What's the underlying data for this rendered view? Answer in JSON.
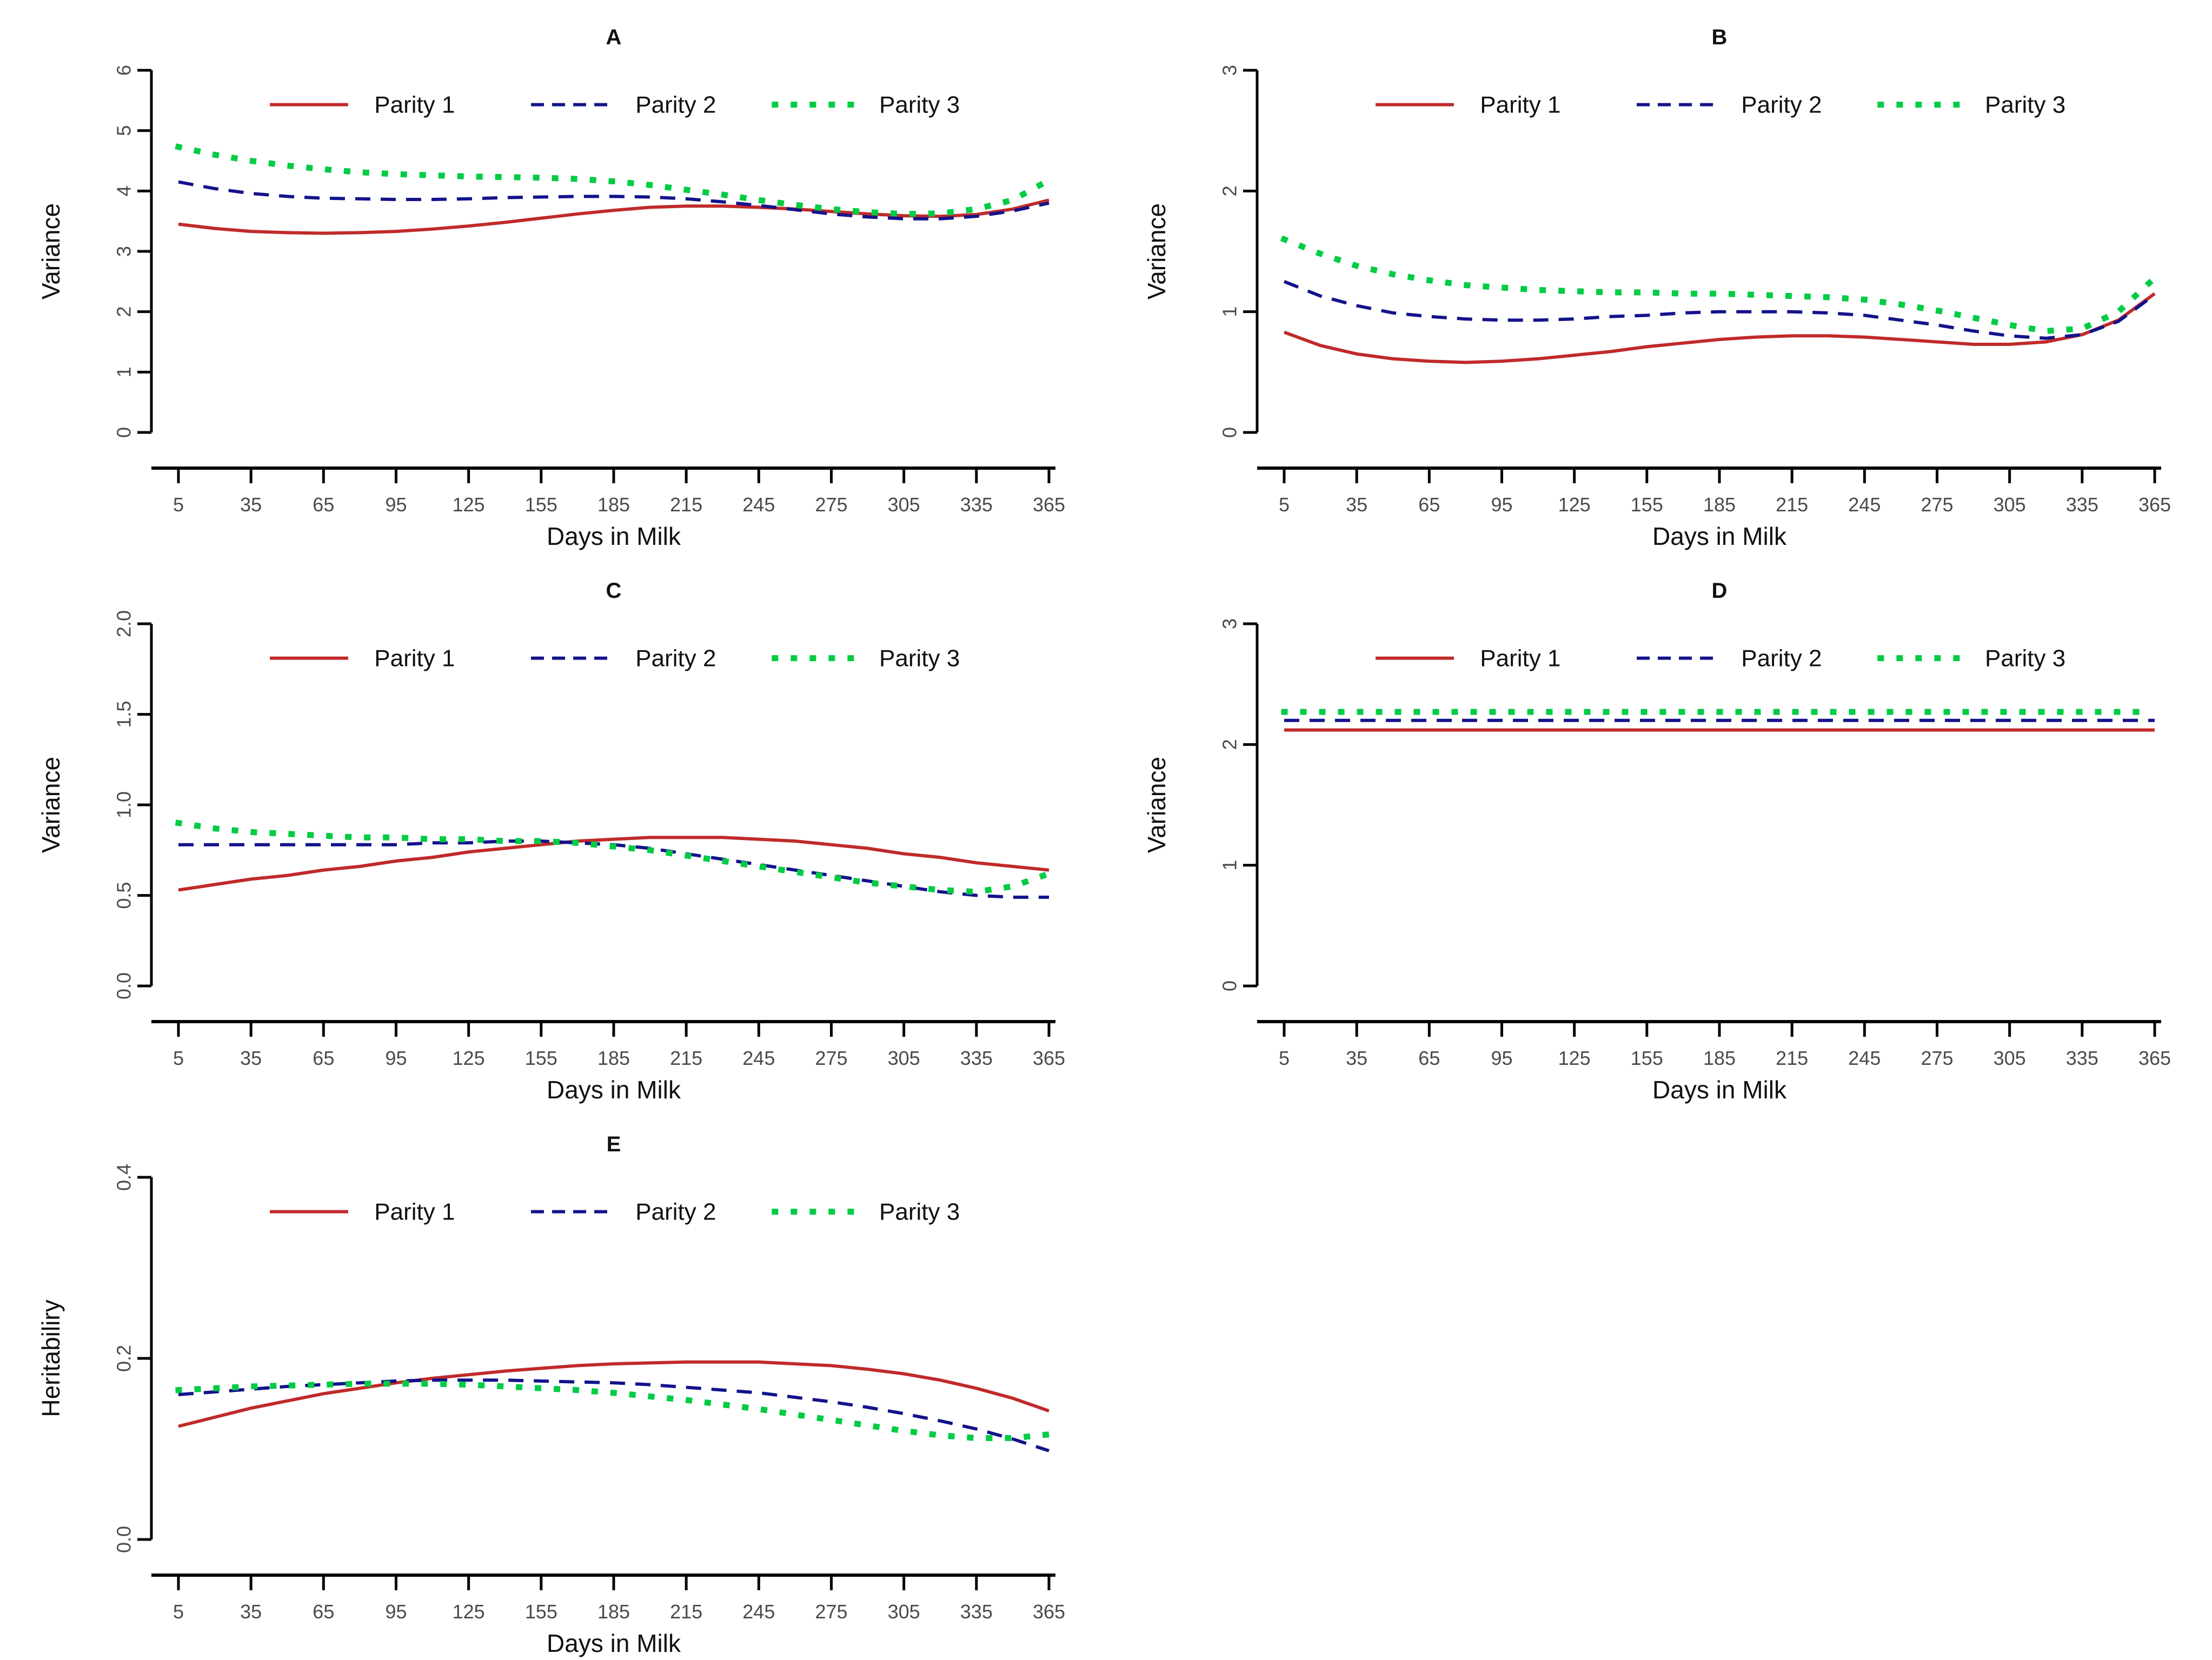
{
  "figure": {
    "background": "#ffffff",
    "xlabel": "Days in Milk",
    "x_ticks": [
      5,
      35,
      65,
      95,
      125,
      155,
      185,
      215,
      245,
      275,
      305,
      335,
      365
    ],
    "x_min": 5,
    "x_max": 365
  },
  "colors": {
    "parity1": "#c02a2a",
    "parity2": "#13138c",
    "parity3": "#00cc44",
    "axis": "#000000",
    "tick_text": "#4a4a4a",
    "label_text": "#111111"
  },
  "legend": {
    "items": [
      {
        "label": "Parity 1",
        "series": "parity1",
        "style": "solid"
      },
      {
        "label": "Parity 2",
        "series": "parity2",
        "style": "dashed"
      },
      {
        "label": "Parity 3",
        "series": "parity3",
        "style": "dotted"
      }
    ]
  },
  "chart_data": [
    {
      "type": "line",
      "title": "A",
      "xlabel": "Days in Milk",
      "ylabel": "Variance",
      "ylim": [
        0,
        6
      ],
      "ytick_labels": [
        "0",
        "1",
        "2",
        "3",
        "4",
        "5",
        "6"
      ],
      "yticks": [
        0,
        1,
        2,
        3,
        4,
        5,
        6
      ],
      "x": [
        5,
        20,
        35,
        50,
        65,
        80,
        95,
        110,
        125,
        140,
        155,
        170,
        185,
        200,
        215,
        230,
        245,
        260,
        275,
        290,
        305,
        320,
        335,
        350,
        365
      ],
      "series": [
        {
          "name": "Parity 1",
          "color_key": "parity1",
          "dash": "solid",
          "values": [
            3.45,
            3.38,
            3.33,
            3.31,
            3.3,
            3.31,
            3.33,
            3.37,
            3.42,
            3.48,
            3.55,
            3.62,
            3.68,
            3.73,
            3.75,
            3.75,
            3.73,
            3.7,
            3.66,
            3.62,
            3.59,
            3.58,
            3.61,
            3.7,
            3.85
          ]
        },
        {
          "name": "Parity 2",
          "color_key": "parity2",
          "dash": "dashed",
          "values": [
            4.15,
            4.04,
            3.96,
            3.91,
            3.88,
            3.87,
            3.86,
            3.86,
            3.87,
            3.89,
            3.9,
            3.91,
            3.91,
            3.9,
            3.87,
            3.82,
            3.76,
            3.69,
            3.62,
            3.57,
            3.54,
            3.54,
            3.58,
            3.67,
            3.8
          ]
        },
        {
          "name": "Parity 3",
          "color_key": "parity3",
          "dash": "dotted",
          "values": [
            4.73,
            4.6,
            4.5,
            4.42,
            4.36,
            4.31,
            4.28,
            4.26,
            4.24,
            4.23,
            4.22,
            4.2,
            4.16,
            4.1,
            4.02,
            3.94,
            3.85,
            3.77,
            3.7,
            3.65,
            3.62,
            3.63,
            3.7,
            3.85,
            4.18
          ]
        }
      ]
    },
    {
      "type": "line",
      "title": "B",
      "xlabel": "Days in Milk",
      "ylabel": "Variance",
      "ylim": [
        0,
        3
      ],
      "ytick_labels": [
        "0",
        "1",
        "2",
        "3"
      ],
      "yticks": [
        0,
        1,
        2,
        3
      ],
      "x": [
        5,
        20,
        35,
        50,
        65,
        80,
        95,
        110,
        125,
        140,
        155,
        170,
        185,
        200,
        215,
        230,
        245,
        260,
        275,
        290,
        305,
        320,
        335,
        350,
        365
      ],
      "series": [
        {
          "name": "Parity 1",
          "color_key": "parity1",
          "dash": "solid",
          "values": [
            0.83,
            0.72,
            0.65,
            0.61,
            0.59,
            0.58,
            0.59,
            0.61,
            0.64,
            0.67,
            0.71,
            0.74,
            0.77,
            0.79,
            0.8,
            0.8,
            0.79,
            0.77,
            0.75,
            0.73,
            0.73,
            0.75,
            0.81,
            0.93,
            1.15
          ]
        },
        {
          "name": "Parity 2",
          "color_key": "parity2",
          "dash": "dashed",
          "values": [
            1.25,
            1.13,
            1.05,
            0.99,
            0.96,
            0.94,
            0.93,
            0.93,
            0.94,
            0.96,
            0.97,
            0.99,
            1.0,
            1.0,
            1.0,
            0.99,
            0.97,
            0.93,
            0.89,
            0.84,
            0.8,
            0.78,
            0.81,
            0.92,
            1.14
          ]
        },
        {
          "name": "Parity 3",
          "color_key": "parity3",
          "dash": "dotted",
          "values": [
            1.6,
            1.48,
            1.38,
            1.31,
            1.26,
            1.22,
            1.2,
            1.18,
            1.17,
            1.16,
            1.16,
            1.15,
            1.15,
            1.14,
            1.13,
            1.12,
            1.1,
            1.06,
            1.01,
            0.95,
            0.89,
            0.84,
            0.86,
            1.0,
            1.28
          ]
        }
      ]
    },
    {
      "type": "line",
      "title": "C",
      "xlabel": "Days in Milk",
      "ylabel": "Variance",
      "ylim": [
        0,
        2
      ],
      "ytick_labels": [
        "0.0",
        "0.5",
        "1.0",
        "1.5",
        "2.0"
      ],
      "yticks": [
        0,
        0.5,
        1,
        1.5,
        2
      ],
      "x": [
        5,
        20,
        35,
        50,
        65,
        80,
        95,
        110,
        125,
        140,
        155,
        170,
        185,
        200,
        215,
        230,
        245,
        260,
        275,
        290,
        305,
        320,
        335,
        350,
        365
      ],
      "series": [
        {
          "name": "Parity 1",
          "color_key": "parity1",
          "dash": "solid",
          "values": [
            0.53,
            0.56,
            0.59,
            0.61,
            0.64,
            0.66,
            0.69,
            0.71,
            0.74,
            0.76,
            0.78,
            0.8,
            0.81,
            0.82,
            0.82,
            0.82,
            0.81,
            0.8,
            0.78,
            0.76,
            0.73,
            0.71,
            0.68,
            0.66,
            0.64
          ]
        },
        {
          "name": "Parity 2",
          "color_key": "parity2",
          "dash": "dashed",
          "values": [
            0.78,
            0.78,
            0.78,
            0.78,
            0.78,
            0.78,
            0.78,
            0.79,
            0.79,
            0.8,
            0.8,
            0.79,
            0.78,
            0.76,
            0.73,
            0.7,
            0.67,
            0.64,
            0.61,
            0.58,
            0.55,
            0.52,
            0.5,
            0.49,
            0.49
          ]
        },
        {
          "name": "Parity 3",
          "color_key": "parity3",
          "dash": "dotted",
          "values": [
            0.9,
            0.87,
            0.85,
            0.84,
            0.83,
            0.82,
            0.82,
            0.81,
            0.81,
            0.8,
            0.8,
            0.79,
            0.77,
            0.75,
            0.72,
            0.69,
            0.66,
            0.63,
            0.6,
            0.57,
            0.55,
            0.53,
            0.52,
            0.55,
            0.62
          ]
        }
      ]
    },
    {
      "type": "line",
      "title": "D",
      "xlabel": "Days in Milk",
      "ylabel": "Variance",
      "ylim": [
        0,
        3
      ],
      "ytick_labels": [
        "0",
        "1",
        "2",
        "3"
      ],
      "yticks": [
        0,
        1,
        2,
        3
      ],
      "x": [
        5,
        20,
        35,
        50,
        65,
        80,
        95,
        110,
        125,
        140,
        155,
        170,
        185,
        200,
        215,
        230,
        245,
        260,
        275,
        290,
        305,
        320,
        335,
        350,
        365
      ],
      "series": [
        {
          "name": "Parity 1",
          "color_key": "parity1",
          "dash": "solid",
          "values": [
            2.12,
            2.12,
            2.12,
            2.12,
            2.12,
            2.12,
            2.12,
            2.12,
            2.12,
            2.12,
            2.12,
            2.12,
            2.12,
            2.12,
            2.12,
            2.12,
            2.12,
            2.12,
            2.12,
            2.12,
            2.12,
            2.12,
            2.12,
            2.12,
            2.12
          ]
        },
        {
          "name": "Parity 2",
          "color_key": "parity2",
          "dash": "dashed",
          "values": [
            2.2,
            2.2,
            2.2,
            2.2,
            2.2,
            2.2,
            2.2,
            2.2,
            2.2,
            2.2,
            2.2,
            2.2,
            2.2,
            2.2,
            2.2,
            2.2,
            2.2,
            2.2,
            2.2,
            2.2,
            2.2,
            2.2,
            2.2,
            2.2,
            2.2
          ]
        },
        {
          "name": "Parity 3",
          "color_key": "parity3",
          "dash": "dotted",
          "values": [
            2.27,
            2.27,
            2.27,
            2.27,
            2.27,
            2.27,
            2.27,
            2.27,
            2.27,
            2.27,
            2.27,
            2.27,
            2.27,
            2.27,
            2.27,
            2.27,
            2.27,
            2.27,
            2.27,
            2.27,
            2.27,
            2.27,
            2.27,
            2.27,
            2.27
          ]
        }
      ]
    },
    {
      "type": "line",
      "title": "E",
      "xlabel": "Days in Milk",
      "ylabel": "Heritabiliry",
      "ylim": [
        0,
        0.4
      ],
      "ytick_labels": [
        "0.0",
        "0.2",
        "0.4"
      ],
      "yticks": [
        0,
        0.2,
        0.4
      ],
      "x": [
        5,
        20,
        35,
        50,
        65,
        80,
        95,
        110,
        125,
        140,
        155,
        170,
        185,
        200,
        215,
        230,
        245,
        260,
        275,
        290,
        305,
        320,
        335,
        350,
        365
      ],
      "series": [
        {
          "name": "Parity 1",
          "color_key": "parity1",
          "dash": "solid",
          "values": [
            0.125,
            0.135,
            0.145,
            0.153,
            0.161,
            0.167,
            0.173,
            0.178,
            0.182,
            0.186,
            0.189,
            0.192,
            0.194,
            0.195,
            0.196,
            0.196,
            0.196,
            0.194,
            0.192,
            0.188,
            0.183,
            0.176,
            0.167,
            0.156,
            0.142
          ]
        },
        {
          "name": "Parity 2",
          "color_key": "parity2",
          "dash": "dashed",
          "values": [
            0.16,
            0.163,
            0.166,
            0.169,
            0.171,
            0.173,
            0.175,
            0.176,
            0.176,
            0.176,
            0.175,
            0.174,
            0.173,
            0.171,
            0.168,
            0.165,
            0.162,
            0.157,
            0.152,
            0.146,
            0.139,
            0.131,
            0.122,
            0.111,
            0.098
          ]
        },
        {
          "name": "Parity 3",
          "color_key": "parity3",
          "dash": "dotted",
          "values": [
            0.165,
            0.167,
            0.169,
            0.17,
            0.171,
            0.172,
            0.172,
            0.172,
            0.171,
            0.169,
            0.167,
            0.165,
            0.162,
            0.158,
            0.154,
            0.149,
            0.144,
            0.138,
            0.132,
            0.126,
            0.12,
            0.115,
            0.112,
            0.112,
            0.116
          ]
        }
      ]
    }
  ]
}
